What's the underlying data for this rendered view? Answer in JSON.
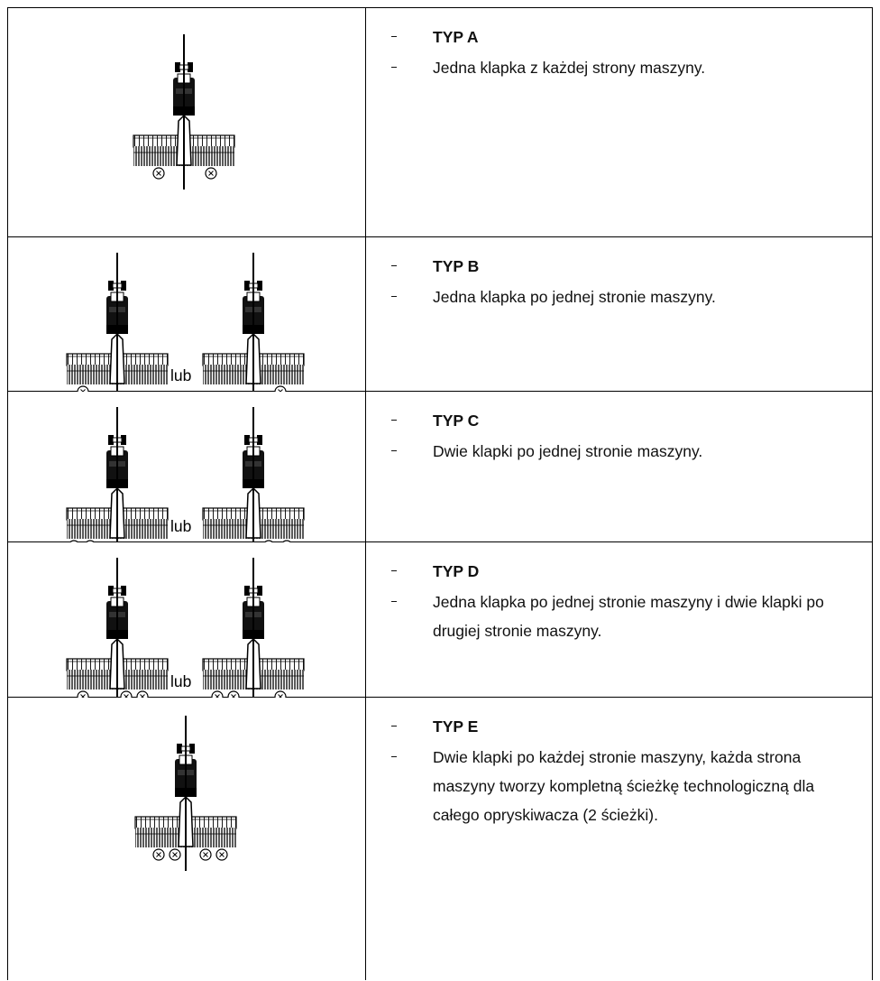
{
  "rows": [
    {
      "title": "TYP A",
      "description": "Jedna klapka z każdej strony maszyny."
    },
    {
      "title": "TYP B",
      "description": "Jedna klapka po jednej stronie maszyny.",
      "connector": "lub"
    },
    {
      "title": "TYP C",
      "description": "Dwie klapki po jednej stronie maszyny.",
      "connector": "lub"
    },
    {
      "title": "TYP D",
      "description": "Jedna klapka po jednej stronie maszyny i dwie klapki po drugiej stronie maszyny.",
      "connector": "lub"
    },
    {
      "title": "TYP E",
      "description": "Dwie klapki po każdej stronie maszyny, każda strona maszyny tworzy kompletną ścieżkę technologiczną dla całego opryskiwacza (2 ścieżki)."
    }
  ]
}
